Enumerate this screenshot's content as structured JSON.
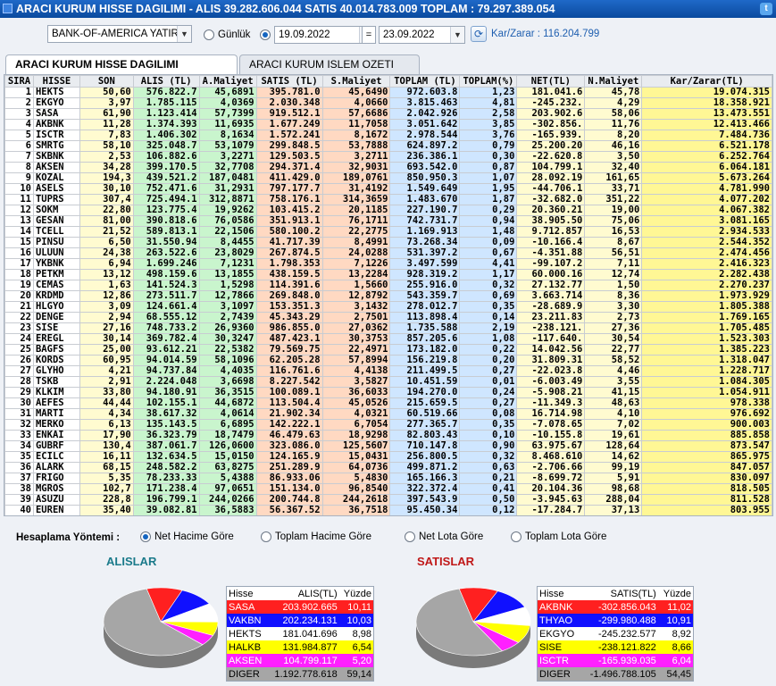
{
  "title": "ARACI KURUM HISSE DAGILIMI - ALIS 39.282.606.044  SATIS 40.014.783.009  TOPLAM : 79.297.389.054",
  "toolbar": {
    "broker": "BANK-OF-AMERICA YATIRIM",
    "gunluk_label": "Günlük",
    "date_from": "19.09.2022",
    "eq": "=",
    "date_to": "23.09.2022",
    "kar_zarar": "Kar/Zarar : 116.204.799"
  },
  "tabs": [
    "ARACI KURUM HISSE DAGILIMI",
    "ARACI KURUM ISLEM OZETI"
  ],
  "columns": [
    "SIRA",
    "HISSE",
    "SON",
    "ALIS (TL)",
    "A.Maliyet",
    "SATIS (TL)",
    "S.Maliyet",
    "TOPLAM (TL)",
    "TOPLAM(%)",
    "NET(TL)",
    "N.Maliyet",
    "Kar/Zarar(TL)"
  ],
  "rows": [
    [
      "1",
      "HEKTS",
      "50,60",
      "576.822.7",
      "45,6891",
      "395.781.0",
      "45,6490",
      "972.603.8",
      "1,23",
      "181.041.6",
      "45,78",
      "19.074.315"
    ],
    [
      "2",
      "EKGYO",
      "3,97",
      "1.785.115",
      "4,0369",
      "2.030.348",
      "4,0660",
      "3.815.463",
      "4,81",
      "-245.232.",
      "4,29",
      "18.358.921"
    ],
    [
      "3",
      "SASA",
      "61,90",
      "1.123.414",
      "57,7399",
      "919.512.1",
      "57,6686",
      "2.042.926",
      "2,58",
      "203.902.6",
      "58,06",
      "13.473.551"
    ],
    [
      "4",
      "AKBNK",
      "11,28",
      "1.374.393",
      "11,6935",
      "1.677.249",
      "11,7058",
      "3.051.642",
      "3,85",
      "-302.856.",
      "11,76",
      "12.413.466"
    ],
    [
      "5",
      "ISCTR",
      "7,83",
      "1.406.302",
      "8,1634",
      "1.572.241",
      "8,1672",
      "2.978.544",
      "3,76",
      "-165.939.",
      "8,20",
      "7.484.736"
    ],
    [
      "6",
      "SMRTG",
      "58,10",
      "325.048.7",
      "53,1079",
      "299.848.5",
      "53,7888",
      "624.897.2",
      "0,79",
      "25.200.20",
      "46,16",
      "6.521.178"
    ],
    [
      "7",
      "SKBNK",
      "2,53",
      "106.882.6",
      "3,2271",
      "129.503.5",
      "3,2711",
      "236.386.1",
      "0,30",
      "-22.620.8",
      "3,50",
      "6.252.764"
    ],
    [
      "8",
      "AKSEN",
      "34,28",
      "399.170.5",
      "32,7708",
      "294.371.4",
      "32,9031",
      "693.542.0",
      "0,87",
      "104.799.1",
      "32,40",
      "6.064.181"
    ],
    [
      "9",
      "KOZAL",
      "194,3",
      "439.521.2",
      "187,0481",
      "411.429.0",
      "189,0761",
      "850.950.3",
      "1,07",
      "28.092.19",
      "161,65",
      "5.673.264"
    ],
    [
      "10",
      "ASELS",
      "30,10",
      "752.471.6",
      "31,2931",
      "797.177.7",
      "31,4192",
      "1.549.649",
      "1,95",
      "-44.706.1",
      "33,71",
      "4.781.990"
    ],
    [
      "11",
      "TUPRS",
      "307,4",
      "725.494.1",
      "312,8871",
      "758.176.1",
      "314,3659",
      "1.483.670",
      "1,87",
      "-32.682.0",
      "351,22",
      "4.077.202"
    ],
    [
      "12",
      "SOKM",
      "22,80",
      "123.775.4",
      "19,9262",
      "103.415.2",
      "20,1185",
      "227.190.7",
      "0,29",
      "20.360.21",
      "19,00",
      "4.067.382"
    ],
    [
      "13",
      "GESAN",
      "81,00",
      "390.818.6",
      "76,0586",
      "351.913.1",
      "76,1711",
      "742.731.7",
      "0,94",
      "38.905.50",
      "75,06",
      "3.081.165"
    ],
    [
      "14",
      "TCELL",
      "21,52",
      "589.813.1",
      "22,1506",
      "580.100.2",
      "22,2775",
      "1.169.913",
      "1,48",
      "9.712.857",
      "16,53",
      "2.934.533"
    ],
    [
      "15",
      "PINSU",
      "6,50",
      "31.550.94",
      "8,4455",
      "41.717.39",
      "8,4991",
      "73.268.34",
      "0,09",
      "-10.166.4",
      "8,67",
      "2.544.352"
    ],
    [
      "16",
      "ULUUN",
      "24,38",
      "263.522.6",
      "23,8029",
      "267.874.5",
      "24,0288",
      "531.397.2",
      "0,67",
      "-4.351.88",
      "56,51",
      "2.474.456"
    ],
    [
      "17",
      "YKBNK",
      "6,94",
      "1.699.246",
      "7,1231",
      "1.798.353",
      "7,1226",
      "3.497.599",
      "4,41",
      "-99.107.2",
      "7,11",
      "2.416.323"
    ],
    [
      "18",
      "PETKM",
      "13,12",
      "498.159.6",
      "13,1855",
      "438.159.5",
      "13,2284",
      "928.319.2",
      "1,17",
      "60.000.16",
      "12,74",
      "2.282.438"
    ],
    [
      "19",
      "CEMAS",
      "1,63",
      "141.524.3",
      "1,5298",
      "114.391.6",
      "1,5660",
      "255.916.0",
      "0,32",
      "27.132.77",
      "1,50",
      "2.270.237"
    ],
    [
      "20",
      "KRDMD",
      "12,86",
      "273.511.7",
      "12,7866",
      "269.848.0",
      "12,8792",
      "543.359.7",
      "0,69",
      "3.663.714",
      "8,36",
      "1.973.929"
    ],
    [
      "21",
      "HLGYO",
      "3,09",
      "124.661.4",
      "3,1097",
      "153.351.3",
      "3,1432",
      "278.012.7",
      "0,35",
      "-28.689.9",
      "3,30",
      "1.805.388"
    ],
    [
      "22",
      "DENGE",
      "2,94",
      "68.555.12",
      "2,7439",
      "45.343.29",
      "2,7501",
      "113.898.4",
      "0,14",
      "23.211.83",
      "2,73",
      "1.769.165"
    ],
    [
      "23",
      "SISE",
      "27,16",
      "748.733.2",
      "26,9360",
      "986.855.0",
      "27,0362",
      "1.735.588",
      "2,19",
      "-238.121.",
      "27,36",
      "1.705.485"
    ],
    [
      "24",
      "EREGL",
      "30,14",
      "369.782.4",
      "30,3247",
      "487.423.1",
      "30,3753",
      "857.205.6",
      "1,08",
      "-117.640.",
      "30,54",
      "1.523.303"
    ],
    [
      "25",
      "BAGFS",
      "25,00",
      "93.612.21",
      "22,5382",
      "79.569.75",
      "22,4971",
      "173.182.0",
      "0,22",
      "14.042.56",
      "22,77",
      "1.385.223"
    ],
    [
      "26",
      "KORDS",
      "60,95",
      "94.014.59",
      "58,1096",
      "62.205.28",
      "57,8994",
      "156.219.8",
      "0,20",
      "31.809.31",
      "58,52",
      "1.318.047"
    ],
    [
      "27",
      "GLYHO",
      "4,21",
      "94.737.84",
      "4,4035",
      "116.761.6",
      "4,4138",
      "211.499.5",
      "0,27",
      "-22.023.8",
      "4,46",
      "1.228.717"
    ],
    [
      "28",
      "TSKB",
      "2,91",
      "2.224.048",
      "3,6698",
      "8.227.542",
      "3,5827",
      "10.451.59",
      "0,01",
      "-6.003.49",
      "3,55",
      "1.084.305"
    ],
    [
      "29",
      "KLKIM",
      "33,80",
      "94.180.91",
      "36,3515",
      "100.089.1",
      "36,6033",
      "194.270.0",
      "0,24",
      "-5.908.21",
      "41,15",
      "1.054.911"
    ],
    [
      "30",
      "AEFES",
      "44,44",
      "102.155.1",
      "44,6872",
      "113.504.4",
      "45,0526",
      "215.659.5",
      "0,27",
      "-11.349.3",
      "48,63",
      "978.338"
    ],
    [
      "31",
      "MARTI",
      "4,34",
      "38.617.32",
      "4,0614",
      "21.902.34",
      "4,0321",
      "60.519.66",
      "0,08",
      "16.714.98",
      "4,10",
      "976.692"
    ],
    [
      "32",
      "MERKO",
      "6,13",
      "135.143.5",
      "6,6895",
      "142.222.1",
      "6,7054",
      "277.365.7",
      "0,35",
      "-7.078.65",
      "7,02",
      "900.003"
    ],
    [
      "33",
      "ENKAI",
      "17,90",
      "36.323.79",
      "18,7479",
      "46.479.63",
      "18,9298",
      "82.803.43",
      "0,10",
      "-10.155.8",
      "19,61",
      "885.858"
    ],
    [
      "34",
      "GUBRF",
      "130,4",
      "387.061.7",
      "126,0600",
      "323.086.0",
      "125,5607",
      "710.147.8",
      "0,90",
      "63.975.67",
      "128,64",
      "873.547"
    ],
    [
      "35",
      "ECILC",
      "16,11",
      "132.634.5",
      "15,0150",
      "124.165.9",
      "15,0431",
      "256.800.5",
      "0,32",
      "8.468.610",
      "14,62",
      "865.975"
    ],
    [
      "36",
      "ALARK",
      "68,15",
      "248.582.2",
      "63,8275",
      "251.289.9",
      "64,0736",
      "499.871.2",
      "0,63",
      "-2.706.66",
      "99,19",
      "847.057"
    ],
    [
      "37",
      "FRIGO",
      "5,35",
      "78.233.33",
      "5,4388",
      "86.933.06",
      "5,4830",
      "165.166.3",
      "0,21",
      "-8.699.72",
      "5,91",
      "830.097"
    ],
    [
      "38",
      "MGROS",
      "102,7",
      "171.238.4",
      "97,0651",
      "151.134.0",
      "96,8540",
      "322.372.4",
      "0,41",
      "20.104.36",
      "98,68",
      "818.505"
    ],
    [
      "39",
      "ASUZU",
      "228,8",
      "196.799.1",
      "244,0266",
      "200.744.8",
      "244,2618",
      "397.543.9",
      "0,50",
      "-3.945.63",
      "288,04",
      "811.528"
    ],
    [
      "40",
      "EUREN",
      "35,40",
      "39.082.81",
      "36,5883",
      "56.367.52",
      "36,7518",
      "95.450.34",
      "0,12",
      "-17.284.7",
      "37,13",
      "803.955"
    ]
  ],
  "calc": {
    "label": "Hesaplama Yöntemi :",
    "options": [
      "Net Hacime Göre",
      "Toplam Hacime Göre",
      "Net Lota Göre",
      "Toplam Lota Göre"
    ],
    "selected": 0
  },
  "alislar": {
    "title": "ALISLAR",
    "headers": [
      "Hisse",
      "ALIS(TL)",
      "Yüzde"
    ],
    "rows": [
      {
        "name": "SASA",
        "value": "203.902.665",
        "pct": "10,11",
        "bg": "#ff2020",
        "fg": "#ffffff",
        "share": 10.11
      },
      {
        "name": "VAKBN",
        "value": "202.234.131",
        "pct": "10,03",
        "bg": "#1010ff",
        "fg": "#ffffff",
        "share": 10.03
      },
      {
        "name": "HEKTS",
        "value": "181.041.696",
        "pct": "8,98",
        "bg": "#ffffff",
        "fg": "#000000",
        "share": 8.98
      },
      {
        "name": "HALKB",
        "value": "131.984.877",
        "pct": "6,54",
        "bg": "#ffff00",
        "fg": "#000000",
        "share": 6.54
      },
      {
        "name": "AKSEN",
        "value": "104.799.117",
        "pct": "5,20",
        "bg": "#ff20ff",
        "fg": "#ffffff",
        "share": 5.2
      },
      {
        "name": "DIGER",
        "value": "1.192.778.618",
        "pct": "59,14",
        "bg": "#a6a6a6",
        "fg": "#000000",
        "share": 59.14
      }
    ]
  },
  "satislar": {
    "title": "SATISLAR",
    "headers": [
      "Hisse",
      "SATIS(TL)",
      "Yüzde"
    ],
    "rows": [
      {
        "name": "AKBNK",
        "value": "-302.856.043",
        "pct": "11,02",
        "bg": "#ff2020",
        "fg": "#ffffff",
        "share": 11.02
      },
      {
        "name": "THYAO",
        "value": "-299.980.488",
        "pct": "10,91",
        "bg": "#1010ff",
        "fg": "#ffffff",
        "share": 10.91
      },
      {
        "name": "EKGYO",
        "value": "-245.232.577",
        "pct": "8,92",
        "bg": "#ffffff",
        "fg": "#000000",
        "share": 8.92
      },
      {
        "name": "SISE",
        "value": "-238.121.822",
        "pct": "8,66",
        "bg": "#ffff00",
        "fg": "#000000",
        "share": 8.66
      },
      {
        "name": "ISCTR",
        "value": "-165.939.035",
        "pct": "6,04",
        "bg": "#ff20ff",
        "fg": "#ffffff",
        "share": 6.04
      },
      {
        "name": "DIGER",
        "value": "-1.496.788.105",
        "pct": "54,45",
        "bg": "#a6a6a6",
        "fg": "#000000",
        "share": 54.45
      }
    ]
  }
}
